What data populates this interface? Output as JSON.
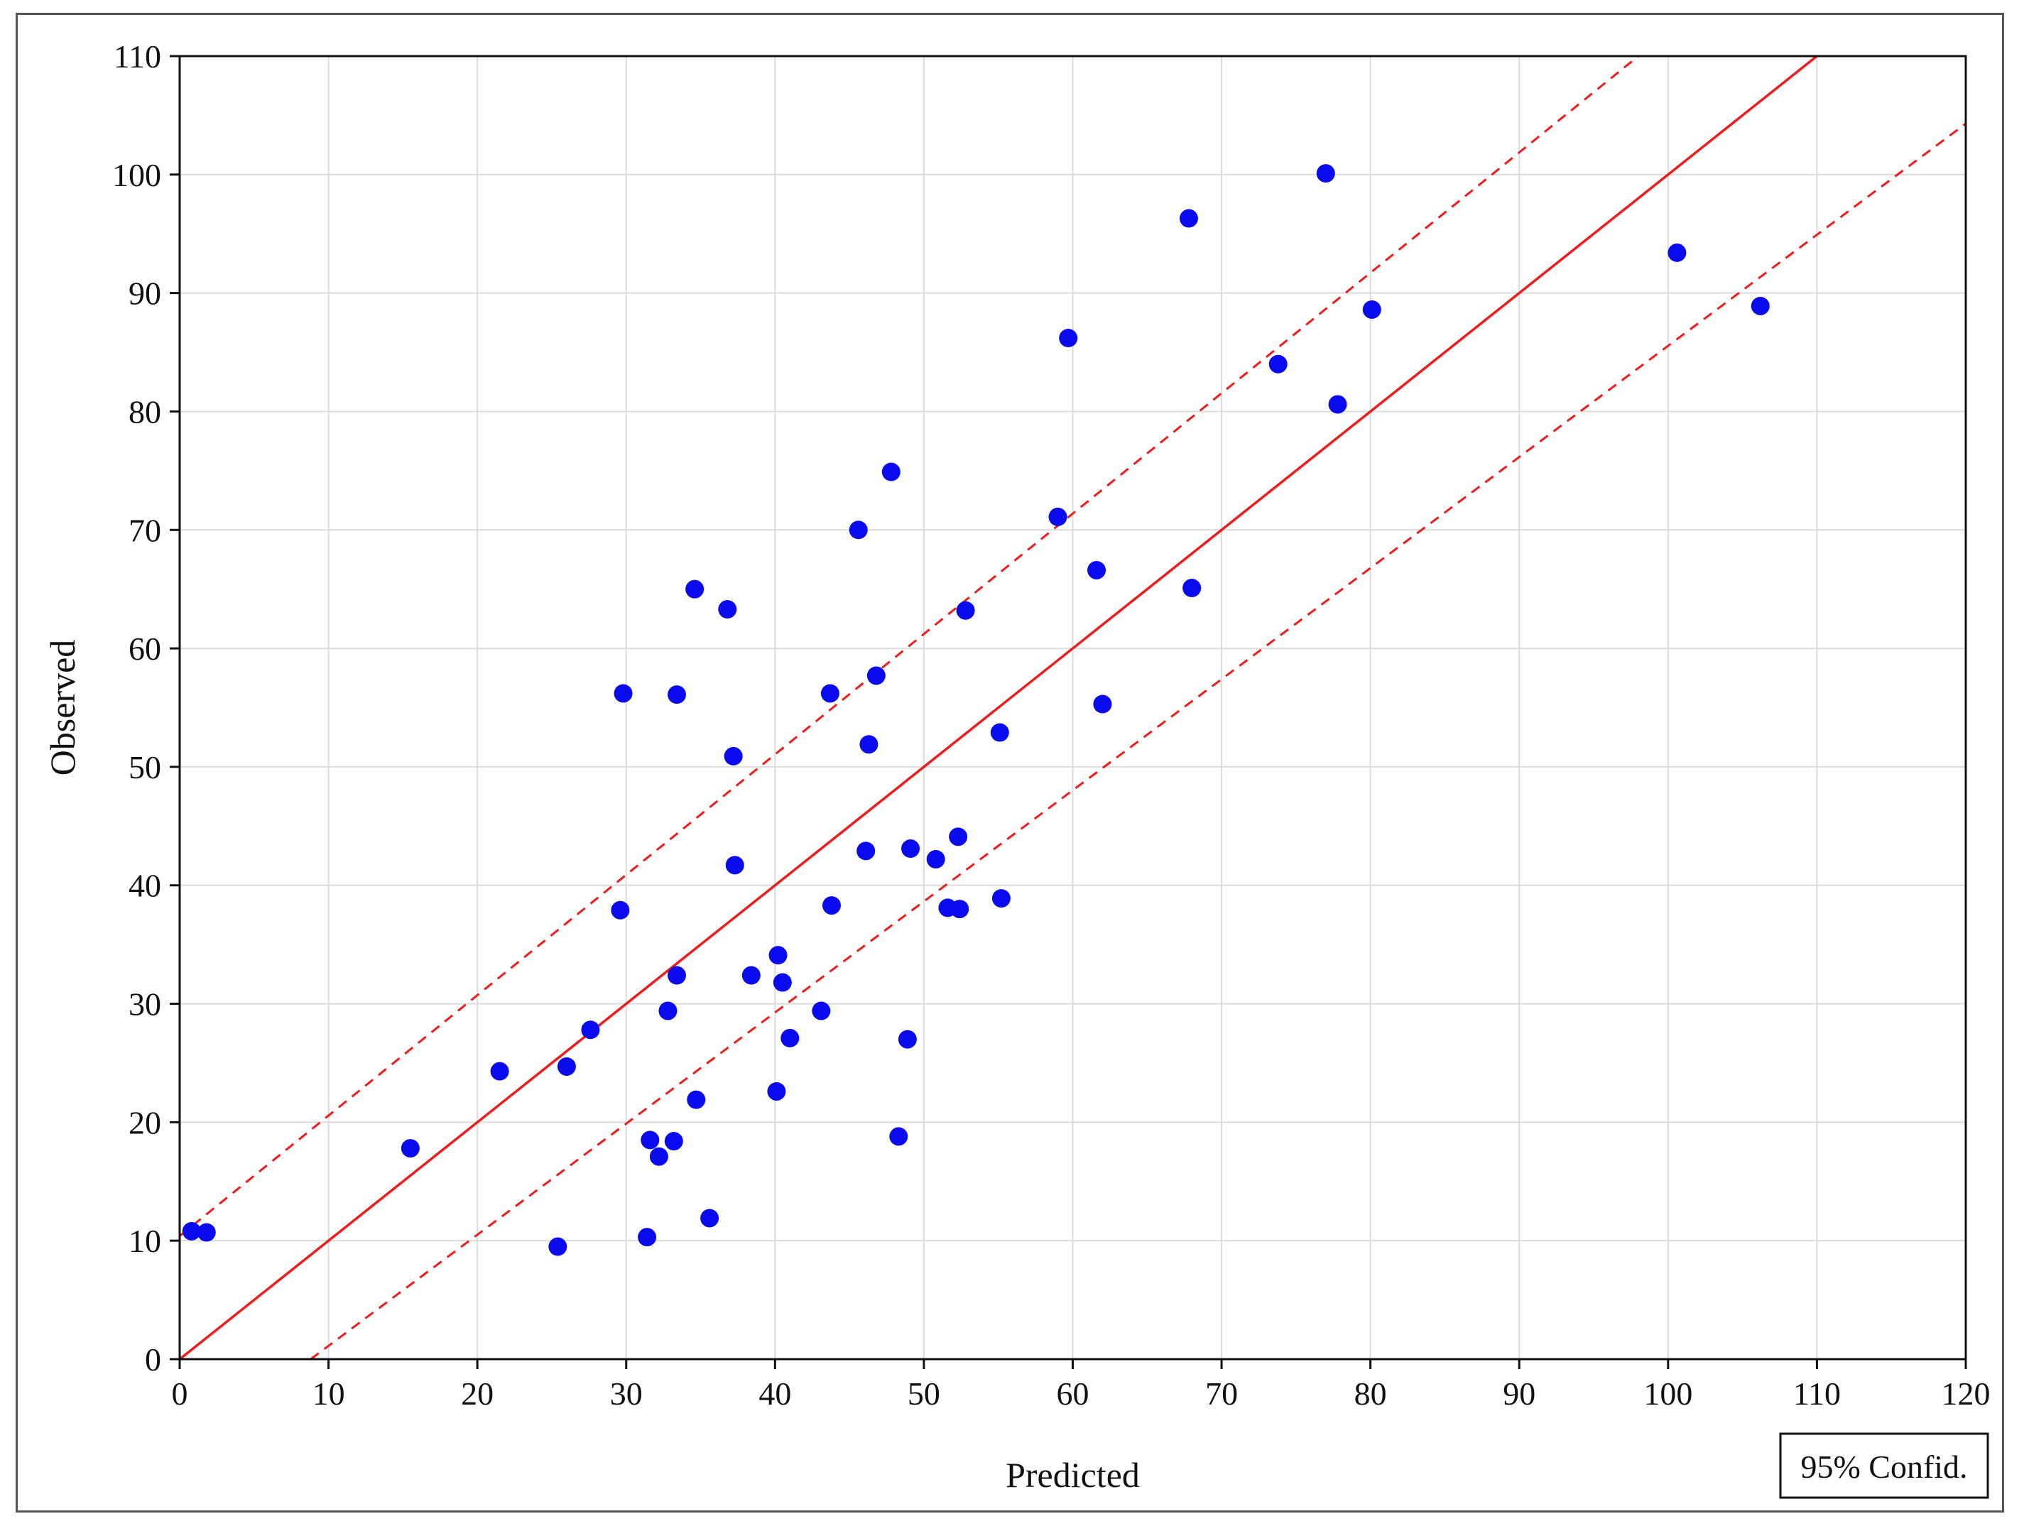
{
  "chart_data": {
    "type": "scatter",
    "title": "",
    "xlabel": "Predicted",
    "ylabel": "Observed",
    "xlim": [
      0,
      120
    ],
    "ylim": [
      0,
      110
    ],
    "xticks": [
      0,
      10,
      20,
      30,
      40,
      50,
      60,
      70,
      80,
      90,
      100,
      110,
      120
    ],
    "yticks": [
      0,
      10,
      20,
      30,
      40,
      50,
      60,
      70,
      80,
      90,
      100,
      110
    ],
    "grid": true,
    "legend": {
      "label": "95% Confid.",
      "placement": "bottom-right"
    },
    "colors": {
      "points": "#0a0aee",
      "fit": "#ee1c1c",
      "grid": "#dcdcdc"
    },
    "fit_line": {
      "slope": 1.0,
      "intercept": 0.0
    },
    "confidence_band": {
      "upper": {
        "x": [
          0,
          98
        ],
        "y": [
          10.4,
          110
        ]
      },
      "lower": {
        "x": [
          8.8,
          120
        ],
        "y": [
          0,
          104.3
        ]
      }
    },
    "points": [
      {
        "x": 0.8,
        "y": 10.8
      },
      {
        "x": 1.8,
        "y": 10.7
      },
      {
        "x": 15.5,
        "y": 17.8
      },
      {
        "x": 21.5,
        "y": 24.3
      },
      {
        "x": 25.4,
        "y": 9.5
      },
      {
        "x": 26.0,
        "y": 24.7
      },
      {
        "x": 27.6,
        "y": 27.8
      },
      {
        "x": 29.6,
        "y": 37.9
      },
      {
        "x": 29.8,
        "y": 56.2
      },
      {
        "x": 31.4,
        "y": 10.3
      },
      {
        "x": 31.6,
        "y": 18.5
      },
      {
        "x": 32.2,
        "y": 17.1
      },
      {
        "x": 32.8,
        "y": 29.4
      },
      {
        "x": 33.2,
        "y": 18.4
      },
      {
        "x": 33.4,
        "y": 32.4
      },
      {
        "x": 33.4,
        "y": 56.1
      },
      {
        "x": 34.6,
        "y": 65.0
      },
      {
        "x": 34.7,
        "y": 21.9
      },
      {
        "x": 35.6,
        "y": 11.9
      },
      {
        "x": 36.8,
        "y": 63.3
      },
      {
        "x": 37.2,
        "y": 50.9
      },
      {
        "x": 37.3,
        "y": 41.7
      },
      {
        "x": 38.4,
        "y": 32.4
      },
      {
        "x": 40.1,
        "y": 22.6
      },
      {
        "x": 40.2,
        "y": 34.1
      },
      {
        "x": 40.5,
        "y": 31.8
      },
      {
        "x": 41.0,
        "y": 27.1
      },
      {
        "x": 43.1,
        "y": 29.4
      },
      {
        "x": 43.7,
        "y": 56.2
      },
      {
        "x": 43.8,
        "y": 38.3
      },
      {
        "x": 45.6,
        "y": 70.0
      },
      {
        "x": 46.1,
        "y": 42.9
      },
      {
        "x": 46.3,
        "y": 51.9
      },
      {
        "x": 46.8,
        "y": 57.7
      },
      {
        "x": 47.8,
        "y": 74.9
      },
      {
        "x": 48.3,
        "y": 18.8
      },
      {
        "x": 48.9,
        "y": 27.0
      },
      {
        "x": 49.1,
        "y": 43.1
      },
      {
        "x": 50.8,
        "y": 42.2
      },
      {
        "x": 51.6,
        "y": 38.1
      },
      {
        "x": 52.3,
        "y": 44.1
      },
      {
        "x": 52.4,
        "y": 38.0
      },
      {
        "x": 52.8,
        "y": 63.2
      },
      {
        "x": 55.1,
        "y": 52.9
      },
      {
        "x": 55.2,
        "y": 38.9
      },
      {
        "x": 59.0,
        "y": 71.1
      },
      {
        "x": 59.7,
        "y": 86.2
      },
      {
        "x": 61.6,
        "y": 66.6
      },
      {
        "x": 62.0,
        "y": 55.3
      },
      {
        "x": 67.8,
        "y": 96.3
      },
      {
        "x": 68.0,
        "y": 65.1
      },
      {
        "x": 73.8,
        "y": 84.0
      },
      {
        "x": 77.0,
        "y": 100.1
      },
      {
        "x": 77.8,
        "y": 80.6
      },
      {
        "x": 80.1,
        "y": 88.6
      },
      {
        "x": 100.6,
        "y": 93.4
      },
      {
        "x": 106.2,
        "y": 88.9
      }
    ]
  }
}
